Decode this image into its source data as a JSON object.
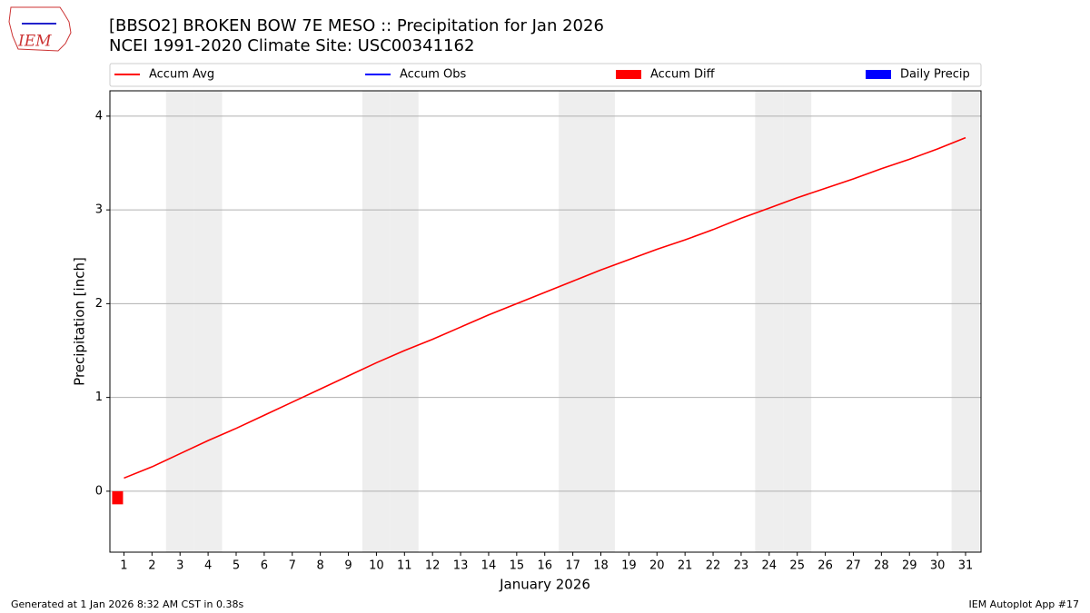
{
  "logo": "IEM",
  "footer": {
    "left": "Generated at 1 Jan 2026 8:32 AM CST in 0.38s",
    "right": "IEM Autoplot App #17"
  },
  "chart_data": {
    "type": "line",
    "title": "[BBSO2] BROKEN BOW 7E MESO :: Precipitation for Jan 2026",
    "subtitle": "NCEI 1991-2020 Climate Site: USC00341162",
    "x_label": "January 2026",
    "y_label": "Precipitation [inch]",
    "x": [
      1,
      2,
      3,
      4,
      5,
      6,
      7,
      8,
      9,
      10,
      11,
      12,
      13,
      14,
      15,
      16,
      17,
      18,
      19,
      20,
      21,
      22,
      23,
      24,
      25,
      26,
      27,
      28,
      29,
      30,
      31
    ],
    "xlim": [
      0.5,
      31.55
    ],
    "xticks": [
      1,
      2,
      3,
      4,
      5,
      6,
      7,
      8,
      9,
      10,
      11,
      12,
      13,
      14,
      15,
      16,
      17,
      18,
      19,
      20,
      21,
      22,
      23,
      24,
      25,
      26,
      27,
      28,
      29,
      30,
      31
    ],
    "ylim": [
      -0.65,
      4.27
    ],
    "yticks": [
      0,
      1,
      2,
      3,
      4
    ],
    "grid": true,
    "weekend_days": [
      3,
      4,
      10,
      11,
      17,
      18,
      24,
      25,
      31
    ],
    "series": [
      {
        "name": "Accum Avg",
        "color": "#ff0000",
        "kind": "line",
        "values": [
          0.14,
          0.26,
          0.4,
          0.54,
          0.67,
          0.81,
          0.95,
          1.09,
          1.23,
          1.37,
          1.5,
          1.62,
          1.75,
          1.88,
          2.0,
          2.12,
          2.24,
          2.36,
          2.47,
          2.58,
          2.68,
          2.79,
          2.91,
          3.02,
          3.13,
          3.23,
          3.33,
          3.44,
          3.54,
          3.65,
          3.77
        ]
      },
      {
        "name": "Accum Obs",
        "color": "#0000ff",
        "kind": "line",
        "values": [
          0,
          null,
          null,
          null,
          null,
          null,
          null,
          null,
          null,
          null,
          null,
          null,
          null,
          null,
          null,
          null,
          null,
          null,
          null,
          null,
          null,
          null,
          null,
          null,
          null,
          null,
          null,
          null,
          null,
          null,
          null
        ]
      },
      {
        "name": "Accum Diff",
        "color": "#ff0000",
        "kind": "bar",
        "values": [
          -0.14,
          null,
          null,
          null,
          null,
          null,
          null,
          null,
          null,
          null,
          null,
          null,
          null,
          null,
          null,
          null,
          null,
          null,
          null,
          null,
          null,
          null,
          null,
          null,
          null,
          null,
          null,
          null,
          null,
          null,
          null
        ]
      },
      {
        "name": "Daily Precip",
        "color": "#0000ff",
        "kind": "bar",
        "values": [
          0,
          null,
          null,
          null,
          null,
          null,
          null,
          null,
          null,
          null,
          null,
          null,
          null,
          null,
          null,
          null,
          null,
          null,
          null,
          null,
          null,
          null,
          null,
          null,
          null,
          null,
          null,
          null,
          null,
          null,
          null
        ]
      }
    ]
  }
}
